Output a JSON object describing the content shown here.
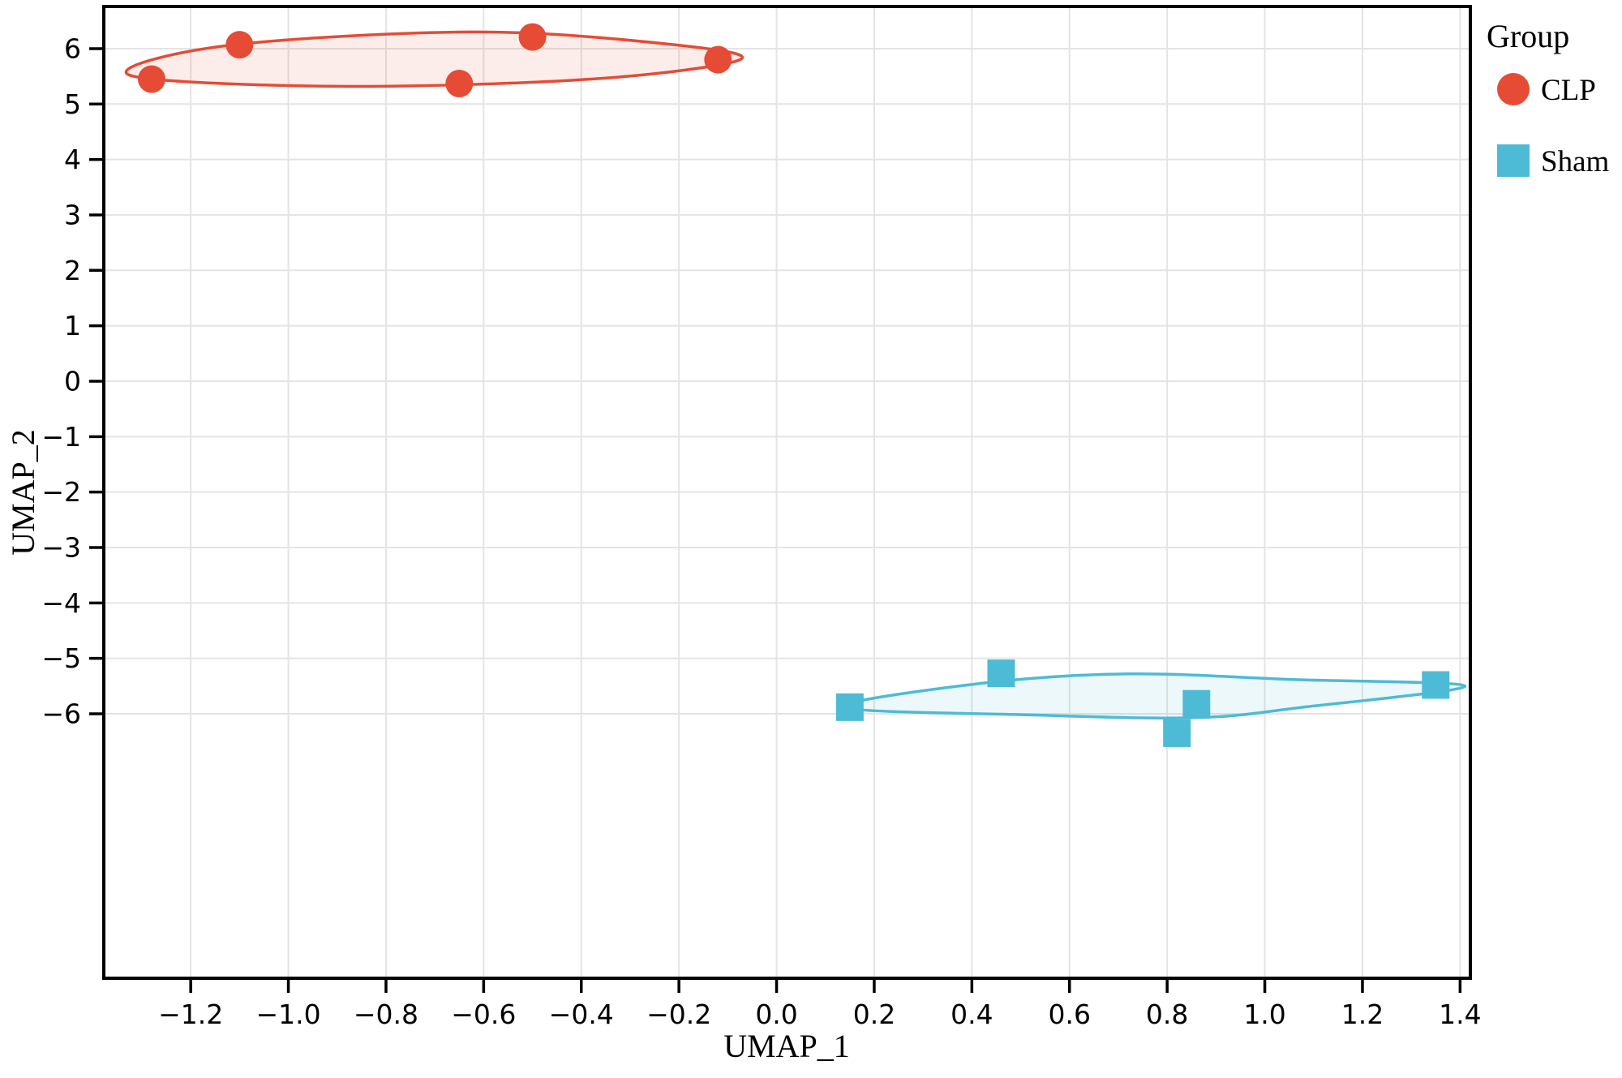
{
  "figure": {
    "background": "#ffffff",
    "panel_border_color": "#000000",
    "grid_color": "#e4e4e4"
  },
  "chart_data": {
    "type": "scatter",
    "title": "",
    "xlabel": "UMAP_1",
    "ylabel": "UMAP_2",
    "xlim": [
      -1.378,
      1.421
    ],
    "ylim": [
      -10.77,
      6.76
    ],
    "grid": true,
    "legend": {
      "title": "Group",
      "position": "top-right",
      "entries": [
        {
          "label": "CLP",
          "marker": "circle",
          "color": "#E64B35"
        },
        {
          "label": "Sham",
          "marker": "square",
          "color": "#4DBBD5"
        }
      ]
    },
    "xticks": {
      "values": [
        -1.2,
        -1.0,
        -0.8,
        -0.6,
        -0.4,
        -0.2,
        0.0,
        0.2,
        0.4,
        0.6,
        0.8,
        1.0,
        1.2,
        1.4
      ],
      "labels": [
        "−1.2",
        "−1.0",
        "−0.8",
        "−0.6",
        "−0.4",
        "−0.2",
        "0.0",
        "0.2",
        "0.4",
        "0.6",
        "0.8",
        "1.0",
        "1.2",
        "1.4"
      ]
    },
    "yticks": {
      "values": [
        6,
        5,
        4,
        3,
        2,
        1,
        0,
        -1,
        -2,
        -3,
        -4,
        -5,
        -6
      ],
      "labels": [
        "6",
        "5",
        "4",
        "3",
        "2",
        "1",
        "0",
        "−1",
        "−2",
        "−3",
        "−4",
        "−5",
        "−6"
      ]
    },
    "series": [
      {
        "name": "CLP",
        "marker": "circle",
        "color": "#E64B35",
        "fill_opacity": 0.1,
        "points": [
          [
            -1.28,
            5.45
          ],
          [
            -1.1,
            6.07
          ],
          [
            -0.65,
            5.37
          ],
          [
            -0.5,
            6.21
          ],
          [
            -0.12,
            5.8
          ]
        ],
        "hull": [
          [
            -1.325,
            5.52
          ],
          [
            -1.13,
            6.05
          ],
          [
            -0.62,
            6.3
          ],
          [
            -0.22,
            6.08
          ],
          [
            -0.075,
            5.8
          ],
          [
            -0.38,
            5.45
          ],
          [
            -0.9,
            5.32
          ]
        ]
      },
      {
        "name": "Sham",
        "marker": "square",
        "color": "#4DBBD5",
        "fill_opacity": 0.1,
        "points": [
          [
            0.15,
            -5.88
          ],
          [
            0.46,
            -5.27
          ],
          [
            0.82,
            -6.35
          ],
          [
            0.86,
            -5.82
          ],
          [
            1.35,
            -5.48
          ]
        ],
        "hull": [
          [
            0.135,
            -5.88
          ],
          [
            0.42,
            -5.45
          ],
          [
            0.72,
            -5.28
          ],
          [
            1.05,
            -5.38
          ],
          [
            1.41,
            -5.5
          ],
          [
            1.08,
            -5.88
          ],
          [
            0.86,
            -6.07
          ],
          [
            0.52,
            -6.02
          ]
        ]
      }
    ]
  }
}
